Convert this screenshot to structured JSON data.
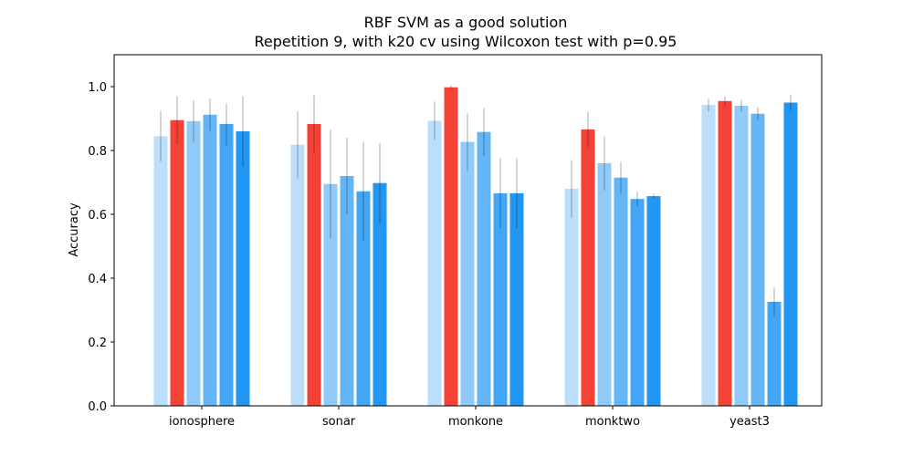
{
  "chart_data": {
    "type": "bar",
    "title": "RBF SVM as a good solution",
    "subtitle": "Repetition 9, with k20 cv using Wilcoxon test with p=0.95",
    "xlabel": "",
    "ylabel": "Accuracy",
    "ylim": [
      0,
      1.1
    ],
    "yticks": [
      0.0,
      0.2,
      0.4,
      0.6,
      0.8,
      1.0
    ],
    "ytick_labels": [
      "0.0",
      "0.2",
      "0.4",
      "0.6",
      "0.8",
      "1.0"
    ],
    "categories": [
      "ionosphere",
      "sonar",
      "monkone",
      "monktwo",
      "yeast3"
    ],
    "grid": false,
    "legend": "none",
    "series": [
      {
        "color": "#bbdefb",
        "values": [
          0.845,
          0.818,
          0.893,
          0.68,
          0.943
        ],
        "errors": [
          0.08,
          0.105,
          0.06,
          0.09,
          0.02
        ]
      },
      {
        "color": "#f44336",
        "values": [
          0.895,
          0.883,
          0.998,
          0.866,
          0.955
        ],
        "errors": [
          0.075,
          0.09,
          0.005,
          0.055,
          0.015
        ]
      },
      {
        "color": "#90caf9",
        "values": [
          0.892,
          0.695,
          0.827,
          0.76,
          0.94
        ],
        "errors": [
          0.065,
          0.17,
          0.09,
          0.085,
          0.018
        ]
      },
      {
        "color": "#64b5f6",
        "values": [
          0.912,
          0.72,
          0.858,
          0.715,
          0.915
        ],
        "errors": [
          0.05,
          0.12,
          0.075,
          0.05,
          0.02
        ]
      },
      {
        "color": "#42a5f5",
        "values": [
          0.883,
          0.672,
          0.666,
          0.648,
          0.326
        ],
        "errors": [
          0.065,
          0.155,
          0.11,
          0.022,
          0.045
        ]
      },
      {
        "color": "#2196f3",
        "values": [
          0.86,
          0.698,
          0.666,
          0.657,
          0.95
        ],
        "errors": [
          0.11,
          0.125,
          0.11,
          0.008,
          0.025
        ]
      }
    ]
  }
}
